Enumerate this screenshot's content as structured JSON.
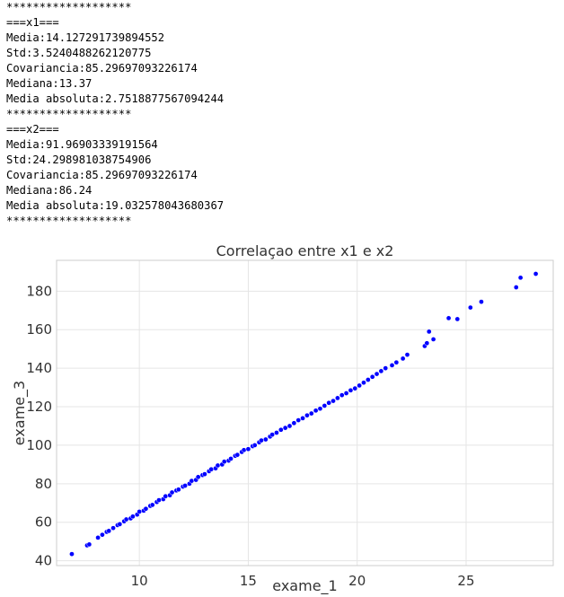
{
  "console": {
    "lines": [
      "*******************",
      "===x1===",
      "Media:14.127291739894552",
      "Std:3.5240488262120775",
      "Covariancia:85.29697093226174",
      "Mediana:13.37",
      "Media absoluta:2.7518877567094244",
      "*******************",
      "===x2===",
      "Media:91.96903339191564",
      "Std:24.298981038754906",
      "Covariancia:85.29697093226174",
      "Mediana:86.24",
      "Media absoluta:19.032578043680367",
      "*******************"
    ]
  },
  "chart_data": {
    "type": "scatter",
    "title": "Correlaçao entre x1 e x2",
    "xlabel": "exame_1",
    "ylabel": "exame_3",
    "xlim": [
      6.2,
      29.0
    ],
    "ylim": [
      37.5,
      196.0
    ],
    "xticks": [
      10,
      15,
      20,
      25
    ],
    "yticks": [
      40,
      60,
      80,
      100,
      120,
      140,
      160,
      180
    ],
    "grid": true,
    "point_color": "#0000ff",
    "point_edge_color": "#ffffff",
    "grid_color": "#e5e5e5",
    "frame_color": "#cccccc",
    "x": [
      6.9,
      7.6,
      7.7,
      8.1,
      8.3,
      8.5,
      8.6,
      8.8,
      9.0,
      9.1,
      9.3,
      9.4,
      9.6,
      9.7,
      9.9,
      10.0,
      10.2,
      10.3,
      10.5,
      10.6,
      10.8,
      10.9,
      11.1,
      11.2,
      11.4,
      11.5,
      11.7,
      11.8,
      12.0,
      12.1,
      12.3,
      12.4,
      12.6,
      12.7,
      12.9,
      13.0,
      13.2,
      13.3,
      13.5,
      13.6,
      13.8,
      13.9,
      14.1,
      14.2,
      14.4,
      14.5,
      14.7,
      14.8,
      15.0,
      15.2,
      15.3,
      15.5,
      15.6,
      15.8,
      16.0,
      16.1,
      16.3,
      16.5,
      16.7,
      16.9,
      17.1,
      17.3,
      17.5,
      17.7,
      17.9,
      18.1,
      18.3,
      18.5,
      18.7,
      18.9,
      19.1,
      19.3,
      19.5,
      19.7,
      19.9,
      20.1,
      20.3,
      20.5,
      20.7,
      20.9,
      21.1,
      21.3,
      21.6,
      21.8,
      22.1,
      22.3,
      23.1,
      23.2,
      23.3,
      23.5,
      24.2,
      24.6,
      25.2,
      25.7,
      27.3,
      27.5,
      28.2
    ],
    "y": [
      43.5,
      48.0,
      48.5,
      52.0,
      53.5,
      55.0,
      55.5,
      57.0,
      58.5,
      59.0,
      60.5,
      61.5,
      62.0,
      63.0,
      64.0,
      65.5,
      66.0,
      67.0,
      68.5,
      69.0,
      70.5,
      71.5,
      72.0,
      73.5,
      74.0,
      75.5,
      76.5,
      77.0,
      78.5,
      79.0,
      80.0,
      81.5,
      82.0,
      83.5,
      84.5,
      85.0,
      86.5,
      87.5,
      88.0,
      89.5,
      90.0,
      91.5,
      92.0,
      93.0,
      94.5,
      95.0,
      96.5,
      97.5,
      98.0,
      99.5,
      100.0,
      101.5,
      102.5,
      103.0,
      104.5,
      105.5,
      106.5,
      108.0,
      109.0,
      110.0,
      111.5,
      113.0,
      114.0,
      115.5,
      116.5,
      118.0,
      119.0,
      120.5,
      122.0,
      123.0,
      124.5,
      126.0,
      127.0,
      128.5,
      129.5,
      131.0,
      132.5,
      134.0,
      135.5,
      137.0,
      138.5,
      140.0,
      141.5,
      143.0,
      145.0,
      147.0,
      151.5,
      153.0,
      159.0,
      155.0,
      166.0,
      165.5,
      171.5,
      174.5,
      182.0,
      187.0,
      189.0
    ]
  }
}
